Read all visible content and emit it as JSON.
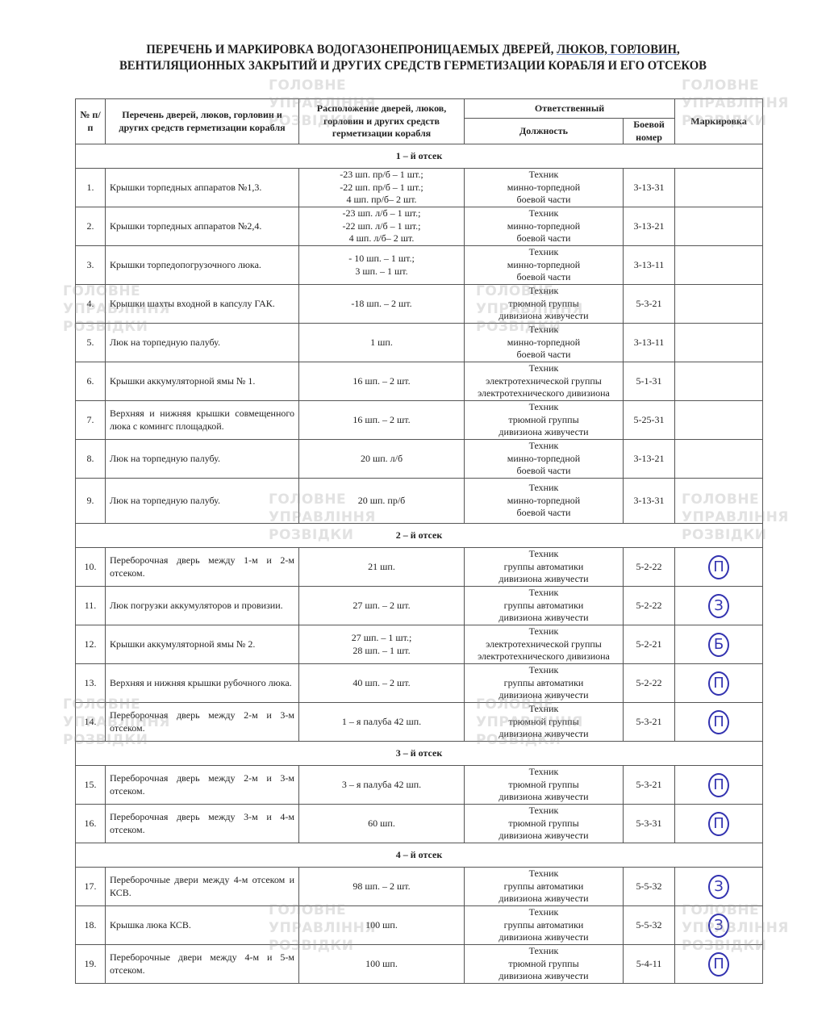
{
  "title": {
    "line1_a": "ПЕРЕЧЕНЬ И МАРКИРОВКА ВОДОГАЗОНЕПРОНИЦАЕМЫХ ДВЕРЕЙ, ",
    "line1_b": "ЛЮКОВ,  ГОРЛОВИН",
    "line1_c": ",",
    "line2": "ВЕНТИЛЯЦИОННЫХ ЗАКРЫТИЙ И ДРУГИХ СРЕДСТВ ГЕРМЕТИЗАЦИИ КОРАБЛЯ И ЕГО ОТСЕКОВ"
  },
  "watermark": {
    "line1": "ГОЛОВНЕ",
    "line2": "УПРАВЛІННЯ",
    "line3": "РОЗВІДКИ"
  },
  "marking_color": "#3333b0",
  "header": {
    "num": "№ п/п",
    "items": "Перечень дверей, люков, горловин и других средств герметизации корабля",
    "location": "Расположение дверей, люков, горловин и других средств герметизации корабля",
    "responsible": "Ответственный",
    "position": "Должность",
    "combat_number": "Боевой номер",
    "marking": "Маркировка"
  },
  "sections": [
    {
      "title": "1 – й отсек",
      "rows": [
        {
          "num": "1.",
          "name": "Крышки торпедных аппаратов №1,3.",
          "location": [
            "-23 шп. пр/б – 1 шт.;",
            "-22 шп. пр/б – 1 шт.;",
            "4 шп. пр/б– 2 шт."
          ],
          "position": [
            "Техник",
            "минно-торпедной",
            "боевой части"
          ],
          "combat": "3-13-31",
          "mark": ""
        },
        {
          "num": "2.",
          "name": "Крышки торпедных аппаратов №2,4.",
          "location": [
            "-23 шп. л/б – 1 шт.;",
            "-22 шп. л/б – 1 шт.;",
            "4 шп. л/б– 2 шт."
          ],
          "position": [
            "Техник",
            "минно-торпедной",
            "боевой части"
          ],
          "combat": "3-13-21",
          "mark": ""
        },
        {
          "num": "3.",
          "name": "Крышки торпедопогрузочного люка.",
          "location": [
            "- 10 шп. – 1 шт.;",
            "3 шп. – 1 шт."
          ],
          "position": [
            "Техник",
            "минно-торпедной",
            "боевой части"
          ],
          "combat": "3-13-11",
          "mark": ""
        },
        {
          "num": "4.",
          "name": "Крышки шахты входной в капсулу ГАК.",
          "location": [
            "-18 шп. – 2 шт."
          ],
          "position": [
            "Техник",
            "трюмной группы",
            "дивизиона живучести"
          ],
          "combat": "5-3-21",
          "mark": ""
        },
        {
          "num": "5.",
          "name": "Люк на торпедную палубу.",
          "location": [
            "1 шп."
          ],
          "position": [
            "Техник",
            "минно-торпедной",
            "боевой части"
          ],
          "combat": "3-13-11",
          "mark": ""
        },
        {
          "num": "6.",
          "name": "Крышки аккумуляторной ямы № 1.",
          "location": [
            "16 шп. – 2 шт."
          ],
          "position": [
            "Техник",
            "электротехнической группы",
            "электротехнического дивизиона"
          ],
          "combat": "5-1-31",
          "mark": ""
        },
        {
          "num": "7.",
          "name": "Верхняя и нижняя крышки совмещенного люка с комингс площадкой.",
          "location": [
            "16 шп. – 2 шт."
          ],
          "position": [
            "Техник",
            "трюмной группы",
            "дивизиона живучести"
          ],
          "combat": "5-25-31",
          "mark": ""
        },
        {
          "num": "8.",
          "name": "Люк на торпедную палубу.",
          "location": [
            "20 шп. л/б"
          ],
          "position": [
            "Техник",
            "минно-торпедной",
            "боевой части"
          ],
          "combat": "3-13-21",
          "mark": ""
        },
        {
          "num": "9.",
          "name": "Люк на торпедную палубу.",
          "location": [
            "20 шп. пр/б"
          ],
          "position": [
            "Техник",
            "минно-торпедной",
            "боевой части"
          ],
          "combat": "3-13-31",
          "mark": ""
        }
      ]
    },
    {
      "title": "2 – й отсек",
      "rows": [
        {
          "num": "10.",
          "name": "Переборочная дверь между 1-м и 2-м отсеком.",
          "location": [
            "21 шп."
          ],
          "position": [
            "Техник",
            "группы автоматики",
            "дивизиона живучести"
          ],
          "combat": "5-2-22",
          "mark": "П"
        },
        {
          "num": "11.",
          "name": "Люк погрузки аккумуляторов и провизии.",
          "location": [
            "27 шп. – 2 шт."
          ],
          "position": [
            "Техник",
            "группы автоматики",
            "дивизиона живучести"
          ],
          "combat": "5-2-22",
          "mark": "З"
        },
        {
          "num": "12.",
          "name": "Крышки аккумуляторной ямы № 2.",
          "location": [
            "27 шп. – 1 шт.;",
            "28 шп. – 1 шт."
          ],
          "position": [
            "Техник",
            "электротехнической группы",
            "электротехнического дивизиона"
          ],
          "combat": "5-2-21",
          "mark": "Б"
        },
        {
          "num": "13.",
          "name": "Верхняя и нижняя крышки рубочного люка.",
          "location": [
            "40 шп. – 2 шт."
          ],
          "position": [
            "Техник",
            "группы автоматики",
            "дивизиона живучести"
          ],
          "combat": "5-2-22",
          "mark": "П"
        },
        {
          "num": "14.",
          "name": "Переборочная дверь между 2-м и 3-м отсеком.",
          "location": [
            "1 – я палуба 42 шп."
          ],
          "position": [
            "Техник",
            "трюмной группы",
            "дивизиона живучести"
          ],
          "combat": "5-3-21",
          "mark": "П"
        }
      ]
    },
    {
      "title": "3 – й отсек",
      "rows": [
        {
          "num": "15.",
          "name": "Переборочная дверь между 2-м и 3-м отсеком.",
          "location": [
            "3 – я палуба 42 шп."
          ],
          "position": [
            "Техник",
            "трюмной группы",
            "дивизиона живучести"
          ],
          "combat": "5-3-21",
          "mark": "П"
        },
        {
          "num": "16.",
          "name": "Переборочная дверь между 3-м и 4-м отсеком.",
          "location": [
            "60 шп."
          ],
          "position": [
            "Техник",
            "трюмной группы",
            "дивизиона живучести"
          ],
          "combat": "5-3-31",
          "mark": "П"
        }
      ]
    },
    {
      "title": "4 – й отсек",
      "rows": [
        {
          "num": "17.",
          "name": "Переборочные двери между 4-м отсеком и КСВ.",
          "location": [
            "98 шп. – 2 шт."
          ],
          "position": [
            "Техник",
            "группы автоматики",
            "дивизиона живучести"
          ],
          "combat": "5-5-32",
          "mark": "З"
        },
        {
          "num": "18.",
          "name": "Крышка люка КСВ.",
          "location": [
            "100 шп."
          ],
          "position": [
            "Техник",
            "группы автоматики",
            "дивизиона живучести"
          ],
          "combat": "5-5-32",
          "mark": "З"
        },
        {
          "num": "19.",
          "name": "Переборочные двери между 4-м и 5-м отсеком.",
          "location": [
            "100 шп."
          ],
          "position": [
            "Техник",
            "трюмной группы",
            "дивизиона живучести"
          ],
          "combat": "5-4-11",
          "mark": "П"
        }
      ]
    }
  ]
}
